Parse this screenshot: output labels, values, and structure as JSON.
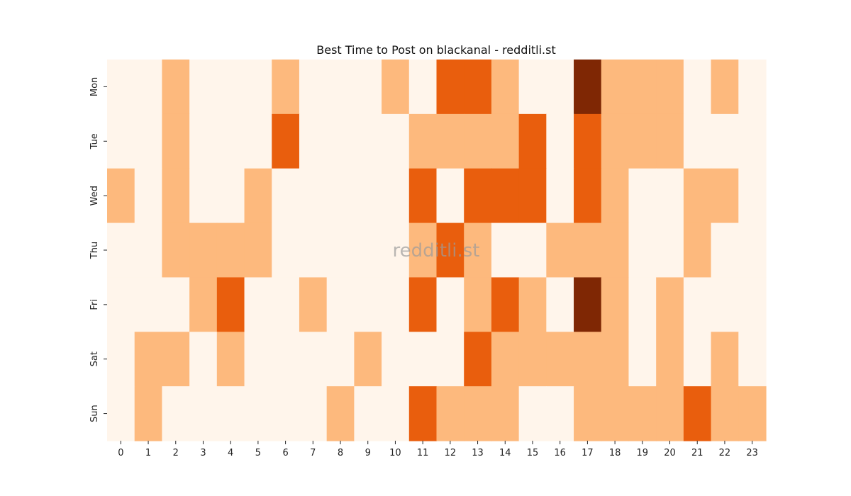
{
  "chart_data": {
    "type": "heatmap",
    "title": "Best Time to Post on blackanal - redditli.st",
    "watermark": "redditli.st",
    "xlabel": "",
    "ylabel": "",
    "x": [
      "0",
      "1",
      "2",
      "3",
      "4",
      "5",
      "6",
      "7",
      "8",
      "9",
      "10",
      "11",
      "12",
      "13",
      "14",
      "15",
      "16",
      "17",
      "18",
      "19",
      "20",
      "21",
      "22",
      "23"
    ],
    "y": [
      "Mon",
      "Tue",
      "Wed",
      "Thu",
      "Fri",
      "Sat",
      "Sun"
    ],
    "levels": [
      0,
      1,
      2,
      3
    ],
    "colors": [
      "#fff5eb",
      "#fdb97d",
      "#e95e0d",
      "#7f2704"
    ],
    "grid": false,
    "legend": "none",
    "values": [
      [
        0,
        0,
        1,
        0,
        0,
        0,
        1,
        0,
        0,
        0,
        1,
        0,
        2,
        2,
        1,
        0,
        0,
        3,
        1,
        1,
        1,
        0,
        1,
        0
      ],
      [
        0,
        0,
        1,
        0,
        0,
        0,
        2,
        0,
        0,
        0,
        0,
        1,
        1,
        1,
        1,
        2,
        0,
        2,
        1,
        1,
        1,
        0,
        0,
        0
      ],
      [
        1,
        0,
        1,
        0,
        0,
        1,
        0,
        0,
        0,
        0,
        0,
        2,
        0,
        2,
        2,
        2,
        0,
        2,
        1,
        0,
        0,
        1,
        1,
        0
      ],
      [
        0,
        0,
        1,
        1,
        1,
        1,
        0,
        0,
        0,
        0,
        0,
        1,
        2,
        1,
        0,
        0,
        1,
        1,
        1,
        0,
        0,
        1,
        0,
        0
      ],
      [
        0,
        0,
        0,
        1,
        2,
        0,
        0,
        1,
        0,
        0,
        0,
        2,
        0,
        1,
        2,
        1,
        0,
        3,
        1,
        0,
        1,
        0,
        0,
        0
      ],
      [
        0,
        1,
        1,
        0,
        1,
        0,
        0,
        0,
        0,
        1,
        0,
        0,
        0,
        2,
        1,
        1,
        1,
        1,
        1,
        0,
        1,
        0,
        1,
        0
      ],
      [
        0,
        1,
        0,
        0,
        0,
        0,
        0,
        0,
        1,
        0,
        0,
        2,
        1,
        1,
        1,
        0,
        0,
        1,
        1,
        1,
        1,
        2,
        1,
        1
      ]
    ]
  }
}
